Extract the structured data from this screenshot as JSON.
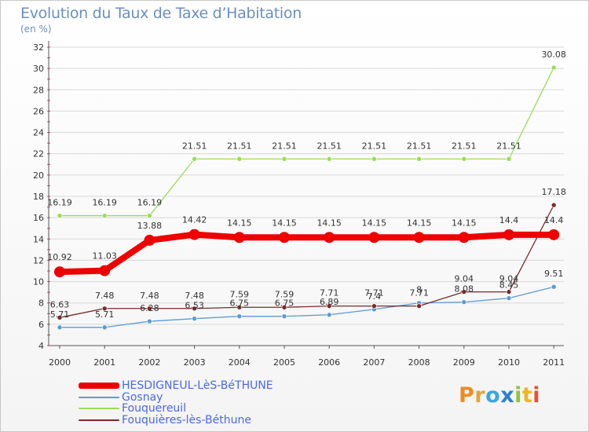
{
  "title": "Evolution du Taux de Taxe d’Habitation",
  "subtitle": "(en %)",
  "logo": {
    "text": [
      "P",
      "r",
      "o",
      "x",
      "i",
      "t",
      "i"
    ],
    "colors": [
      "#f08a24",
      "#e9a23b",
      "#3aa7e0",
      "#2e7fd0",
      "#8dc63f",
      "#f0b323",
      "#e94f2c"
    ]
  },
  "chart_data": {
    "type": "line",
    "title": "Evolution du Taux de Taxe d’Habitation",
    "ylabel": "(en %)",
    "xlabel": "",
    "ylim": [
      4,
      32
    ],
    "yticks": [
      4,
      6,
      8,
      10,
      12,
      14,
      16,
      18,
      20,
      22,
      24,
      26,
      28,
      30,
      32
    ],
    "categories": [
      "2000",
      "2001",
      "2002",
      "2003",
      "2004",
      "2005",
      "2006",
      "2007",
      "2008",
      "2009",
      "2010",
      "2011"
    ],
    "series": [
      {
        "name": "HESDIGNEUL-LèS-BéTHUNE",
        "color": "#ee0000",
        "values": [
          10.92,
          11.03,
          13.88,
          14.42,
          14.15,
          14.15,
          14.15,
          14.15,
          14.15,
          14.15,
          14.4,
          14.4
        ],
        "labels": [
          "10.92",
          "11.03",
          "13.88",
          "14.42",
          "14.15",
          "14.15",
          "14.15",
          "14.15",
          "14.15",
          "14.15",
          "14.4",
          "14.4"
        ]
      },
      {
        "name": "Gosnay",
        "color": "#5b9bd5",
        "values": [
          5.71,
          5.71,
          6.28,
          6.53,
          6.75,
          6.75,
          6.89,
          7.4,
          8.0,
          8.08,
          8.45,
          9.51
        ],
        "labels": [
          "5.71",
          "5.71",
          "6.28",
          "6.53",
          "6.75",
          "6.75",
          "6.89",
          "7.4",
          "8",
          "8.08",
          "8.45",
          "9.51"
        ]
      },
      {
        "name": "Fouquereuil",
        "color": "#99dd55",
        "values": [
          16.19,
          16.19,
          16.19,
          21.51,
          21.51,
          21.51,
          21.51,
          21.51,
          21.51,
          21.51,
          21.51,
          30.08
        ],
        "labels": [
          "16.19",
          "16.19",
          "16.19",
          "21.51",
          "21.51",
          "21.51",
          "21.51",
          "21.51",
          "21.51",
          "21.51",
          "21.51",
          "30.08"
        ]
      },
      {
        "name": "Fouquières-lès-Béthune",
        "color": "#7a2a2a",
        "values": [
          6.63,
          7.48,
          7.48,
          7.48,
          7.59,
          7.59,
          7.71,
          7.71,
          7.71,
          9.04,
          9.04,
          17.18
        ],
        "labels": [
          "6.63",
          "7.48",
          "7.48",
          "7.48",
          "7.59",
          "7.59",
          "7.71",
          "7.71",
          "7.71",
          "9.04",
          "9.04",
          "17.18"
        ]
      }
    ]
  }
}
